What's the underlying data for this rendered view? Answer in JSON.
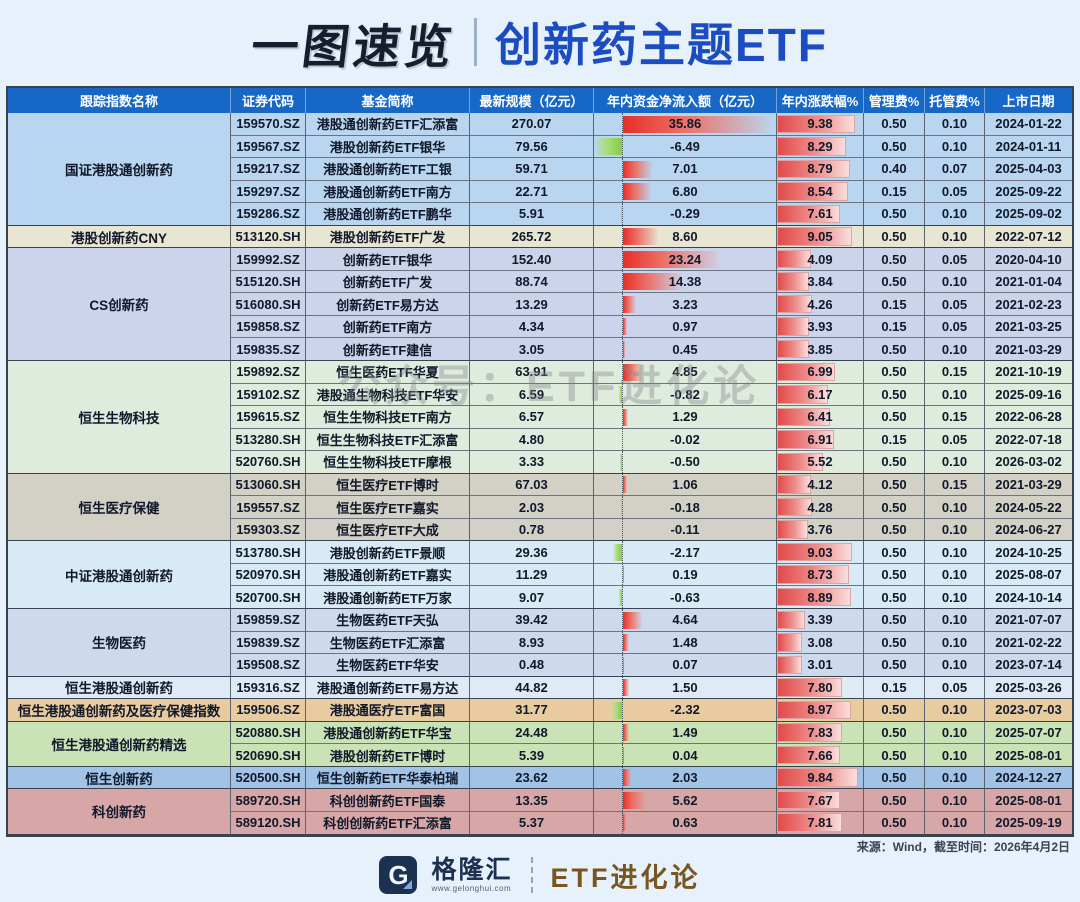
{
  "title": {
    "left": "一图速览",
    "right": "创新药主题ETF"
  },
  "watermark": "公众号：ETF进化论",
  "footer": {
    "source": "来源：Wind，截至时间：2026年4月2日",
    "logo_g": "G",
    "logo_cn": "格隆汇",
    "logo_url": "www.gelonghui.com",
    "logo_right": "ETF进化论"
  },
  "colors": {
    "header_bg": "#1667c6",
    "inflow_positive": "#e62f28",
    "inflow_negative": "#86c94b",
    "change_bar": "#e14a48"
  },
  "chart_data": {
    "type": "table",
    "title": "一图速览 创新药主题ETF",
    "columns": [
      "跟踪指数名称",
      "证券代码",
      "基金简称",
      "最新规模（亿元）",
      "年内资金净流入额（亿元）",
      "年内涨跌幅%",
      "管理费%",
      "托管费%",
      "上市日期"
    ],
    "inflow_axis": {
      "max": 36,
      "note": "red bar = positive inflow, green bar = negative, dotted baseline"
    },
    "change_axis": {
      "max": 10.4,
      "note": "red gradient data bar from left edge"
    },
    "groups": [
      {
        "name": "国证港股通创新药",
        "color": "#b9d5ef",
        "rows": [
          {
            "code": "159570.SZ",
            "fund": "港股通创新药ETF汇添富",
            "scale": "270.07",
            "inflow": 35.86,
            "change": 9.38,
            "mgmt_fee": "0.50",
            "cust_fee": "0.10",
            "list_date": "2024-01-22"
          },
          {
            "code": "159567.SZ",
            "fund": "港股创新药ETF银华",
            "scale": "79.56",
            "inflow": -6.49,
            "change": 8.29,
            "mgmt_fee": "0.50",
            "cust_fee": "0.10",
            "list_date": "2024-01-11"
          },
          {
            "code": "159217.SZ",
            "fund": "港股通创新药ETF工银",
            "scale": "59.71",
            "inflow": 7.01,
            "change": 8.79,
            "mgmt_fee": "0.40",
            "cust_fee": "0.07",
            "list_date": "2025-04-03"
          },
          {
            "code": "159297.SZ",
            "fund": "港股通创新药ETF南方",
            "scale": "22.71",
            "inflow": 6.8,
            "change": 8.54,
            "mgmt_fee": "0.15",
            "cust_fee": "0.05",
            "list_date": "2025-09-22"
          },
          {
            "code": "159286.SZ",
            "fund": "港股通创新药ETF鹏华",
            "scale": "5.91",
            "inflow": -0.29,
            "change": 7.61,
            "mgmt_fee": "0.50",
            "cust_fee": "0.10",
            "list_date": "2025-09-02"
          }
        ]
      },
      {
        "name": "港股创新药CNY",
        "color": "#e9e5d3",
        "rows": [
          {
            "code": "513120.SH",
            "fund": "港股创新药ETF广发",
            "scale": "265.72",
            "inflow": 8.6,
            "change": 9.05,
            "mgmt_fee": "0.50",
            "cust_fee": "0.10",
            "list_date": "2022-07-12"
          }
        ]
      },
      {
        "name": "CS创新药",
        "color": "#cbd4ea",
        "rows": [
          {
            "code": "159992.SZ",
            "fund": "创新药ETF银华",
            "scale": "152.40",
            "inflow": 23.24,
            "change": 4.09,
            "mgmt_fee": "0.50",
            "cust_fee": "0.05",
            "list_date": "2020-04-10"
          },
          {
            "code": "515120.SH",
            "fund": "创新药ETF广发",
            "scale": "88.74",
            "inflow": 14.38,
            "change": 3.84,
            "mgmt_fee": "0.50",
            "cust_fee": "0.10",
            "list_date": "2021-01-04"
          },
          {
            "code": "516080.SH",
            "fund": "创新药ETF易方达",
            "scale": "13.29",
            "inflow": 3.23,
            "change": 4.26,
            "mgmt_fee": "0.15",
            "cust_fee": "0.05",
            "list_date": "2021-02-23"
          },
          {
            "code": "159858.SZ",
            "fund": "创新药ETF南方",
            "scale": "4.34",
            "inflow": 0.97,
            "change": 3.93,
            "mgmt_fee": "0.15",
            "cust_fee": "0.05",
            "list_date": "2021-03-25"
          },
          {
            "code": "159835.SZ",
            "fund": "创新药ETF建信",
            "scale": "3.05",
            "inflow": 0.45,
            "change": 3.85,
            "mgmt_fee": "0.50",
            "cust_fee": "0.10",
            "list_date": "2021-03-29"
          }
        ]
      },
      {
        "name": "恒生生物科技",
        "color": "#dfebdd",
        "rows": [
          {
            "code": "159892.SZ",
            "fund": "恒生医药ETF华夏",
            "scale": "63.91",
            "inflow": 4.85,
            "change": 6.99,
            "mgmt_fee": "0.50",
            "cust_fee": "0.15",
            "list_date": "2021-10-19"
          },
          {
            "code": "159102.SZ",
            "fund": "港股通生物科技ETF华安",
            "scale": "6.59",
            "inflow": -0.82,
            "change": 6.17,
            "mgmt_fee": "0.50",
            "cust_fee": "0.10",
            "list_date": "2025-09-16"
          },
          {
            "code": "159615.SZ",
            "fund": "恒生生物科技ETF南方",
            "scale": "6.57",
            "inflow": 1.29,
            "change": 6.41,
            "mgmt_fee": "0.50",
            "cust_fee": "0.15",
            "list_date": "2022-06-28"
          },
          {
            "code": "513280.SH",
            "fund": "恒生生物科技ETF汇添富",
            "scale": "4.80",
            "inflow": -0.02,
            "change": 6.91,
            "mgmt_fee": "0.15",
            "cust_fee": "0.05",
            "list_date": "2022-07-18"
          },
          {
            "code": "520760.SH",
            "fund": "恒生生物科技ETF摩根",
            "scale": "3.33",
            "inflow": -0.5,
            "change": 5.52,
            "mgmt_fee": "0.50",
            "cust_fee": "0.10",
            "list_date": "2026-03-02"
          }
        ]
      },
      {
        "name": "恒生医疗保健",
        "color": "#d3d0c5",
        "rows": [
          {
            "code": "513060.SH",
            "fund": "恒生医疗ETF博时",
            "scale": "67.03",
            "inflow": 1.06,
            "change": 4.12,
            "mgmt_fee": "0.50",
            "cust_fee": "0.15",
            "list_date": "2021-03-29"
          },
          {
            "code": "159557.SZ",
            "fund": "恒生医疗ETF嘉实",
            "scale": "2.03",
            "inflow": -0.18,
            "change": 4.28,
            "mgmt_fee": "0.50",
            "cust_fee": "0.10",
            "list_date": "2024-05-22"
          },
          {
            "code": "159303.SZ",
            "fund": "恒生医疗ETF大成",
            "scale": "0.78",
            "inflow": -0.11,
            "change": 3.76,
            "mgmt_fee": "0.50",
            "cust_fee": "0.10",
            "list_date": "2024-06-27"
          }
        ]
      },
      {
        "name": "中证港股通创新药",
        "color": "#d9eaf7",
        "rows": [
          {
            "code": "513780.SH",
            "fund": "港股创新药ETF景顺",
            "scale": "29.36",
            "inflow": -2.17,
            "change": 9.03,
            "mgmt_fee": "0.50",
            "cust_fee": "0.10",
            "list_date": "2024-10-25"
          },
          {
            "code": "520970.SH",
            "fund": "港股通创新药ETF嘉实",
            "scale": "11.29",
            "inflow": 0.19,
            "change": 8.73,
            "mgmt_fee": "0.50",
            "cust_fee": "0.10",
            "list_date": "2025-08-07"
          },
          {
            "code": "520700.SH",
            "fund": "港股通创新药ETF万家",
            "scale": "9.07",
            "inflow": -0.63,
            "change": 8.89,
            "mgmt_fee": "0.50",
            "cust_fee": "0.10",
            "list_date": "2024-10-14"
          }
        ]
      },
      {
        "name": "生物医药",
        "color": "#cdd9ed",
        "rows": [
          {
            "code": "159859.SZ",
            "fund": "生物医药ETF天弘",
            "scale": "39.42",
            "inflow": 4.64,
            "change": 3.39,
            "mgmt_fee": "0.50",
            "cust_fee": "0.10",
            "list_date": "2021-07-07"
          },
          {
            "code": "159839.SZ",
            "fund": "生物医药ETF汇添富",
            "scale": "8.93",
            "inflow": 1.48,
            "change": 3.08,
            "mgmt_fee": "0.50",
            "cust_fee": "0.10",
            "list_date": "2021-02-22"
          },
          {
            "code": "159508.SZ",
            "fund": "生物医药ETF华安",
            "scale": "0.48",
            "inflow": 0.07,
            "change": 3.01,
            "mgmt_fee": "0.50",
            "cust_fee": "0.10",
            "list_date": "2023-07-14"
          }
        ]
      },
      {
        "name": "恒生港股通创新药",
        "color": "#deeaf6",
        "rows": [
          {
            "code": "159316.SZ",
            "fund": "港股通创新药ETF易方达",
            "scale": "44.82",
            "inflow": 1.5,
            "change": 7.8,
            "mgmt_fee": "0.15",
            "cust_fee": "0.05",
            "list_date": "2025-03-26"
          }
        ]
      },
      {
        "name": "恒生港股通创新药及医疗保健指数",
        "color": "#e9cba0",
        "rows": [
          {
            "code": "159506.SZ",
            "fund": "港股通医疗ETF富国",
            "scale": "31.77",
            "inflow": -2.32,
            "change": 8.97,
            "mgmt_fee": "0.50",
            "cust_fee": "0.10",
            "list_date": "2023-07-03"
          }
        ]
      },
      {
        "name": "恒生港股通创新药精选",
        "color": "#c9e3b6",
        "rows": [
          {
            "code": "520880.SH",
            "fund": "港股通创新药ETF华宝",
            "scale": "24.48",
            "inflow": 1.49,
            "change": 7.83,
            "mgmt_fee": "0.50",
            "cust_fee": "0.10",
            "list_date": "2025-07-07"
          },
          {
            "code": "520690.SH",
            "fund": "港股创新药ETF博时",
            "scale": "5.39",
            "inflow": 0.04,
            "change": 7.66,
            "mgmt_fee": "0.50",
            "cust_fee": "0.10",
            "list_date": "2025-08-01"
          }
        ]
      },
      {
        "name": "恒生创新药",
        "color": "#a2c3e6",
        "rows": [
          {
            "code": "520500.SH",
            "fund": "恒生创新药ETF华泰柏瑞",
            "scale": "23.62",
            "inflow": 2.03,
            "change": 9.84,
            "mgmt_fee": "0.50",
            "cust_fee": "0.10",
            "list_date": "2024-12-27"
          }
        ]
      },
      {
        "name": "科创新药",
        "color": "#d7a7a7",
        "rows": [
          {
            "code": "589720.SH",
            "fund": "科创创新药ETF国泰",
            "scale": "13.35",
            "inflow": 5.62,
            "change": 7.67,
            "mgmt_fee": "0.50",
            "cust_fee": "0.10",
            "list_date": "2025-08-01"
          },
          {
            "code": "589120.SH",
            "fund": "科创创新药ETF汇添富",
            "scale": "5.37",
            "inflow": 0.63,
            "change": 7.81,
            "mgmt_fee": "0.50",
            "cust_fee": "0.10",
            "list_date": "2025-09-19"
          }
        ]
      }
    ]
  }
}
